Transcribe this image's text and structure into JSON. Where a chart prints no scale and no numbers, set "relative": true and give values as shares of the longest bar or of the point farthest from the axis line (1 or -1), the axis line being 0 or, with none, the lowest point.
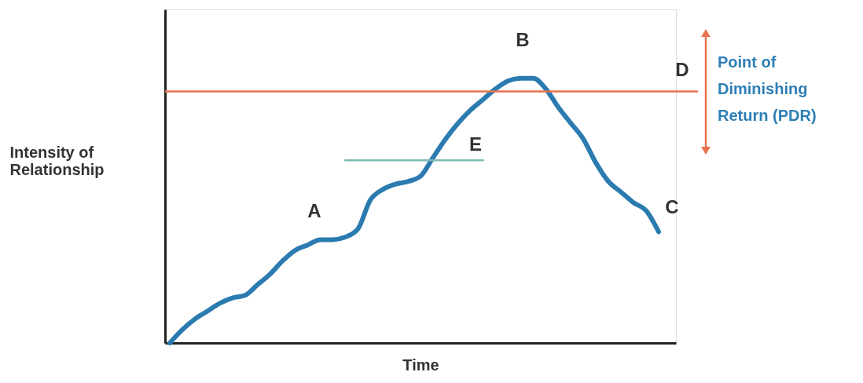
{
  "chart_data": {
    "type": "line",
    "relative": true,
    "xlabel": "Time",
    "ylabel": "Intensity of Relationship",
    "categories": [
      null,
      null,
      null,
      null,
      null,
      null,
      null,
      null,
      null,
      null,
      null,
      null,
      null,
      null,
      null,
      null,
      null,
      null,
      null,
      null,
      null,
      null,
      null,
      null,
      null,
      null,
      null,
      null,
      null,
      null,
      null,
      null,
      null,
      null,
      null,
      null,
      null,
      null,
      null,
      null
    ],
    "series": [
      {
        "color": "#2b7bb0",
        "values": [
          0,
          0.05,
          0.09,
          0.12,
          0.15,
          0.17,
          0.18,
          0.22,
          0.26,
          0.31,
          0.35,
          0.37,
          0.39,
          0.39,
          0.4,
          0.43,
          0.54,
          0.58,
          0.6,
          0.61,
          0.63,
          0.7,
          0.77,
          0.83,
          0.88,
          0.92,
          0.96,
          0.99,
          1.0,
          1.0,
          0.96,
          0.89,
          0.83,
          0.77,
          0.68,
          0.61,
          0.57,
          0.53,
          0.5,
          0.42
        ]
      },
      {
        "color": "#7fbab2",
        "values": [
          null,
          null,
          null,
          null,
          null,
          null,
          null,
          null,
          null,
          null,
          null,
          null,
          null,
          null,
          0.69,
          0.69,
          0.69,
          0.69,
          0.69,
          0.69,
          0.69,
          0.69,
          0.69,
          0.69,
          0.69,
          0.69,
          null,
          null,
          null,
          null,
          null,
          null,
          null,
          null,
          null,
          null,
          null,
          null,
          null,
          null
        ]
      }
    ],
    "ref_lines": [
      {
        "axis": "y",
        "value": 0.95,
        "label": "D",
        "color": "#e8734f"
      }
    ],
    "annotations": [
      "A",
      "B",
      "C",
      "E",
      "Point of Diminishing Return (PDR)"
    ]
  }
}
